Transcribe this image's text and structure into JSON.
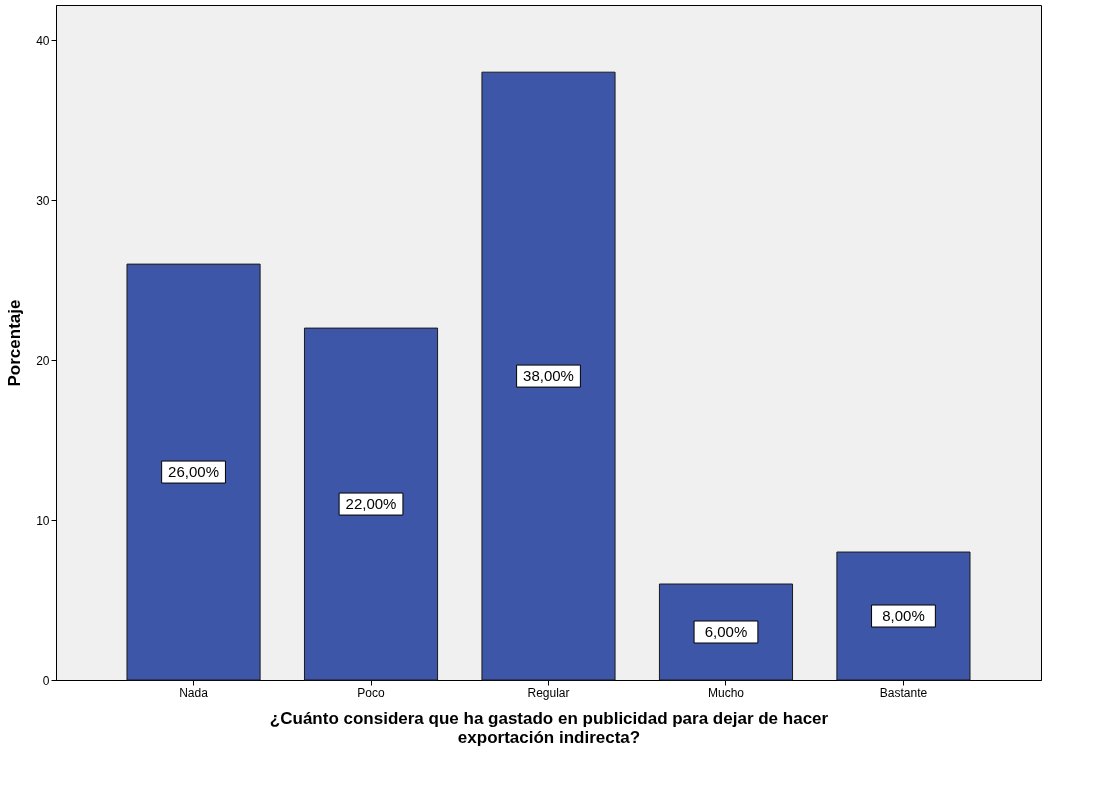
{
  "chart_data": {
    "type": "bar",
    "xlabel": "¿Cuánto considera que ha gastado en publicidad para dejar de hacer exportación indirecta?",
    "ylabel": "Porcentaje",
    "categories": [
      "Nada",
      "Poco",
      "Regular",
      "Mucho",
      "Bastante"
    ],
    "values": [
      26,
      22,
      38,
      6,
      8
    ],
    "value_labels": [
      "26,00%",
      "22,00%",
      "38,00%",
      "6,00%",
      "8,00%"
    ],
    "color": "#3e56a8",
    "ylim": [
      0,
      42.2
    ],
    "yticks": [
      0,
      10,
      20,
      30,
      40
    ],
    "grid": false
  }
}
